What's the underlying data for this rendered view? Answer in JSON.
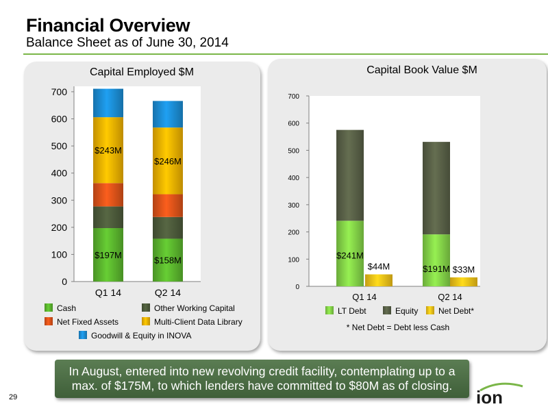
{
  "header": {
    "title": "Financial Overview",
    "subtitle": "Balance Sheet as of June 30, 2014"
  },
  "colors": {
    "cash": "#5cb82e",
    "other_working_capital": "#4e5c3c",
    "net_fixed_assets": "#e0541a",
    "multi_client_data_library": "#f4b400",
    "goodwill": "#1c8fd8",
    "lt_debt": "#86d649",
    "equity": "#5a6248",
    "net_debt": "#f6c419",
    "accent": "#7ab648",
    "callout": "#4a6b44"
  },
  "chart_data": [
    {
      "type": "bar",
      "stacked": true,
      "title": "Capital Employed $M",
      "categories": [
        "Q1 14",
        "Q2 14"
      ],
      "series": [
        {
          "name": "Cash",
          "values": [
            197,
            158
          ],
          "color_key": "cash"
        },
        {
          "name": "Other Working Capital",
          "values": [
            80,
            80
          ],
          "color_key": "other_working_capital"
        },
        {
          "name": "Net Fixed Assets",
          "values": [
            86,
            84
          ],
          "color_key": "net_fixed_assets"
        },
        {
          "name": "Multi-Client Data Library",
          "values": [
            243,
            246
          ],
          "color_key": "multi_client_data_library"
        },
        {
          "name": "Goodwill & Equity in INOVA",
          "values": [
            105,
            98
          ],
          "color_key": "goodwill"
        }
      ],
      "data_labels": [
        {
          "text": "$197M",
          "series": 0,
          "category": 0
        },
        {
          "text": "$158M",
          "series": 0,
          "category": 1
        },
        {
          "text": "$243M",
          "series": 3,
          "category": 0
        },
        {
          "text": "$246M",
          "series": 3,
          "category": 1
        }
      ],
      "yticks": [
        0,
        100,
        200,
        300,
        400,
        500,
        600,
        700
      ],
      "ylim": [
        0,
        720
      ],
      "xlabel": "",
      "ylabel": "",
      "grid": false,
      "legend_position": "bottom"
    },
    {
      "type": "bar",
      "stacked": "mixed",
      "title": "Capital Book Value $M",
      "categories": [
        "Q1 14",
        "Q2 14"
      ],
      "series": [
        {
          "name": "LT Debt",
          "values": [
            241,
            191
          ],
          "color_key": "lt_debt"
        },
        {
          "name": "Equity",
          "values": [
            334,
            340
          ],
          "color_key": "equity"
        },
        {
          "name": "Net Debt*",
          "values": [
            44,
            33
          ],
          "color_key": "net_debt"
        }
      ],
      "data_labels": [
        {
          "text": "$241M",
          "series": 0,
          "category": 0
        },
        {
          "text": "$191M",
          "series": 0,
          "category": 1
        },
        {
          "text": "$44M",
          "series": 2,
          "category": 0
        },
        {
          "text": "$33M",
          "series": 2,
          "category": 1
        }
      ],
      "yticks": [
        0,
        100,
        200,
        300,
        400,
        500,
        600,
        700
      ],
      "ylim": [
        0,
        700
      ],
      "xlabel": "",
      "ylabel": "",
      "grid": false,
      "legend_position": "bottom",
      "footnote": "* Net Debt = Debt less Cash"
    }
  ],
  "callout": {
    "text": "In August, entered into new revolving credit facility, contemplating up to a max. of $175M, to which lenders have committed to $80M as of closing."
  },
  "page_number": "29",
  "logo": {
    "text": "ion"
  }
}
